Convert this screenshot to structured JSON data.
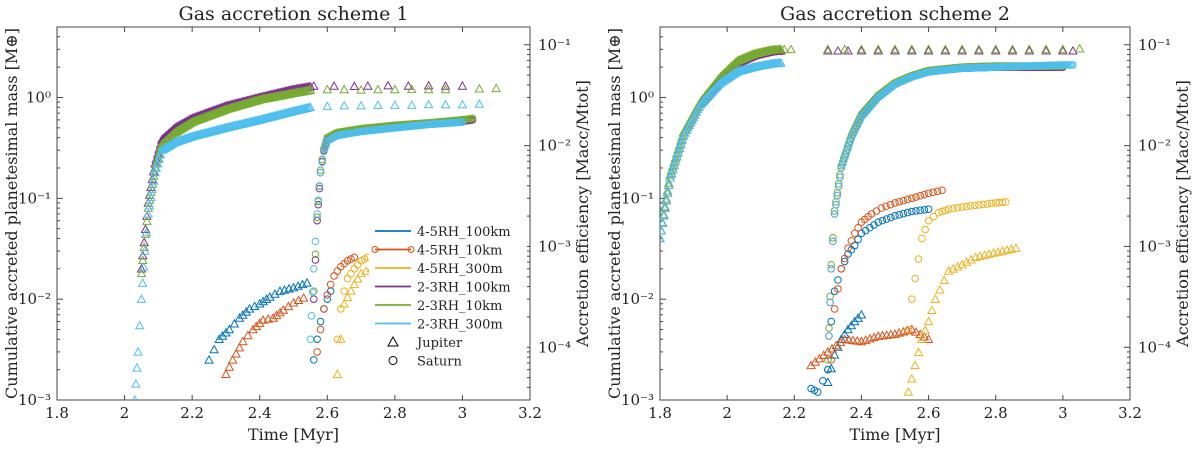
{
  "chart_data": [
    {
      "type": "scatter",
      "title": "Gas accretion scheme 1",
      "xlabel": "Time [Myr]",
      "ylabel_left": "Cumulative accreted planetesimal mass [M⊕]",
      "ylabel_right": "Accretion efficiency [Macc/Mtot]",
      "xlim": [
        1.8,
        3.2
      ],
      "ylim_left": [
        0.001,
        5
      ],
      "ylim_right": [
        3e-05,
        0.15
      ],
      "yscale": "log",
      "xticks": [
        1.8,
        2.0,
        2.2,
        2.4,
        2.6,
        2.8,
        3.0,
        3.2
      ],
      "xtick_labels": [
        "1.8",
        "2",
        "2.2",
        "2.4",
        "2.6",
        "2.8",
        "3",
        "3.2"
      ],
      "yticks_left": [
        0.001,
        0.01,
        0.1,
        1
      ],
      "ytick_labels_left": [
        "10⁻³",
        "10⁻²",
        "10⁻¹",
        "10⁰"
      ],
      "yticks_right": [
        0.0001,
        0.001,
        0.01,
        0.1
      ],
      "ytick_labels_right": [
        "10⁻⁴",
        "10⁻³",
        "10⁻²",
        "10⁻¹"
      ],
      "legend": {
        "position": "bottom-right",
        "entries": [
          {
            "label": "4-5RH_100km",
            "color": "#0072BD",
            "marker": "line"
          },
          {
            "label": "4-5RH_10km",
            "color": "#D95319",
            "marker": "line-circle"
          },
          {
            "label": "4-5RH_300m",
            "color": "#EDB120",
            "marker": "line"
          },
          {
            "label": "2-3RH_100km",
            "color": "#7E2F8E",
            "marker": "line"
          },
          {
            "label": "2-3RH_10km",
            "color": "#77AC30",
            "marker": "line"
          },
          {
            "label": "2-3RH_300m",
            "color": "#4DBEEE",
            "marker": "line"
          },
          {
            "label": "Jupiter",
            "color": "#000000",
            "marker": "triangle"
          },
          {
            "label": "Saturn",
            "color": "#000000",
            "marker": "circle"
          }
        ]
      },
      "series": [
        {
          "name": "2-3RH_100km Jupiter",
          "color": "#7E2F8E",
          "marker": "triangle",
          "x": [
            2.05,
            2.07,
            2.09,
            2.11,
            2.15,
            2.2,
            2.3,
            2.4,
            2.5,
            2.55
          ],
          "y": [
            0.02,
            0.09,
            0.22,
            0.38,
            0.5,
            0.62,
            0.82,
            1.0,
            1.2,
            1.28
          ],
          "tail_x": [
            2.56,
            2.62,
            2.68,
            2.72,
            2.78,
            2.84,
            2.9,
            2.95,
            3.0
          ],
          "tail_y": [
            1.3,
            1.3,
            1.29,
            1.3,
            1.31,
            1.3,
            1.31,
            1.3,
            1.3
          ]
        },
        {
          "name": "2-3RH_10km Jupiter",
          "color": "#77AC30",
          "marker": "triangle",
          "x": [
            2.05,
            2.07,
            2.09,
            2.11,
            2.15,
            2.2,
            2.3,
            2.4,
            2.5,
            2.55
          ],
          "y": [
            0.018,
            0.08,
            0.2,
            0.34,
            0.45,
            0.57,
            0.76,
            0.95,
            1.1,
            1.18
          ],
          "tail_x": [
            2.6,
            2.65,
            2.7,
            2.75,
            2.8,
            2.85,
            2.9,
            2.95,
            3.05,
            3.1
          ],
          "tail_y": [
            1.2,
            1.2,
            1.19,
            1.2,
            1.2,
            1.21,
            1.2,
            1.2,
            1.22,
            1.23
          ]
        },
        {
          "name": "2-3RH_300m Jupiter",
          "color": "#4DBEEE",
          "marker": "triangle",
          "x": [
            2.03,
            2.04,
            2.05,
            2.06,
            2.07,
            2.09,
            2.11,
            2.15,
            2.2,
            2.3,
            2.4,
            2.5,
            2.55
          ],
          "y": [
            0.001,
            0.003,
            0.01,
            0.03,
            0.07,
            0.18,
            0.3,
            0.36,
            0.41,
            0.5,
            0.6,
            0.73,
            0.8
          ],
          "tail_x": [
            2.6,
            2.65,
            2.7,
            2.75,
            2.8,
            2.85,
            2.9,
            2.95,
            3.0,
            3.05
          ],
          "tail_y": [
            0.82,
            0.83,
            0.83,
            0.84,
            0.84,
            0.84,
            0.85,
            0.85,
            0.85,
            0.86
          ]
        },
        {
          "name": "2-3RH_100km Saturn",
          "color": "#7E2F8E",
          "marker": "circle",
          "x": [
            2.56,
            2.57,
            2.58,
            2.59,
            2.6,
            2.63,
            2.7,
            2.8,
            2.9,
            3.0,
            3.03
          ],
          "y": [
            0.01,
            0.06,
            0.18,
            0.3,
            0.38,
            0.43,
            0.47,
            0.51,
            0.55,
            0.58,
            0.6
          ]
        },
        {
          "name": "2-3RH_10km Saturn",
          "color": "#77AC30",
          "marker": "circle",
          "x": [
            2.56,
            2.57,
            2.58,
            2.59,
            2.6,
            2.63,
            2.7,
            2.8,
            2.9,
            3.0,
            3.03
          ],
          "y": [
            0.012,
            0.065,
            0.19,
            0.31,
            0.4,
            0.45,
            0.49,
            0.53,
            0.56,
            0.6,
            0.62
          ]
        },
        {
          "name": "2-3RH_300m Saturn",
          "color": "#4DBEEE",
          "marker": "circle",
          "x": [
            2.55,
            2.56,
            2.57,
            2.58,
            2.59,
            2.6,
            2.63,
            2.7,
            2.8,
            2.9,
            3.0
          ],
          "y": [
            0.004,
            0.02,
            0.07,
            0.18,
            0.29,
            0.37,
            0.42,
            0.46,
            0.5,
            0.54,
            0.57
          ]
        },
        {
          "name": "4-5RH_100km Jupiter",
          "color": "#0072BD",
          "marker": "triangle",
          "x": [
            2.25,
            2.28,
            2.31,
            2.34,
            2.37,
            2.4,
            2.43,
            2.46,
            2.5,
            2.54
          ],
          "y": [
            0.0025,
            0.004,
            0.005,
            0.0065,
            0.008,
            0.009,
            0.0105,
            0.012,
            0.013,
            0.0145
          ]
        },
        {
          "name": "4-5RH_10km Jupiter",
          "color": "#D95319",
          "marker": "triangle",
          "x": [
            2.3,
            2.32,
            2.35,
            2.38,
            2.41,
            2.44,
            2.47,
            2.5,
            2.53
          ],
          "y": [
            0.0018,
            0.0025,
            0.0038,
            0.005,
            0.0062,
            0.0065,
            0.0078,
            0.0092,
            0.0103
          ]
        },
        {
          "name": "4-5RH_300m Jupiter",
          "color": "#EDB120",
          "marker": "triangle",
          "x": [
            2.63,
            2.65,
            2.68,
            2.7,
            2.73,
            2.76,
            2.79,
            2.82,
            2.85
          ],
          "y": [
            0.0018,
            0.009,
            0.014,
            0.018,
            0.02,
            0.022,
            0.024,
            0.026,
            0.027
          ]
        },
        {
          "name": "4-5RH_100km Saturn",
          "color": "#0072BD",
          "marker": "circle",
          "x": [
            2.56,
            2.57,
            2.58,
            2.59,
            2.6,
            2.61
          ],
          "y": [
            0.0025,
            0.004,
            0.006,
            0.008,
            0.01,
            0.012
          ]
        },
        {
          "name": "4-5RH_10km Saturn",
          "color": "#D95319",
          "marker": "circle",
          "x": [
            2.57,
            2.58,
            2.59,
            2.6,
            2.61,
            2.62,
            2.63,
            2.64,
            2.66,
            2.68
          ],
          "y": [
            0.003,
            0.005,
            0.008,
            0.011,
            0.014,
            0.017,
            0.019,
            0.021,
            0.024,
            0.026
          ]
        },
        {
          "name": "4-5RH_300m Saturn",
          "color": "#EDB120",
          "marker": "circle",
          "x": [
            2.63,
            2.64,
            2.65,
            2.66,
            2.68,
            2.7,
            2.72
          ],
          "y": [
            0.004,
            0.008,
            0.012,
            0.016,
            0.02,
            0.024,
            0.026
          ]
        }
      ]
    },
    {
      "type": "scatter",
      "title": "Gas accretion scheme 2",
      "xlabel": "Time [Myr]",
      "ylabel_left": "Cumulative accreted planetesimal mass [M⊕]",
      "ylabel_right": "Accretion efficiency [Macc/Mtot]",
      "xlim": [
        1.8,
        3.2
      ],
      "ylim_left": [
        0.001,
        5
      ],
      "ylim_right": [
        3e-05,
        0.15
      ],
      "yscale": "log",
      "xticks": [
        1.8,
        2.0,
        2.2,
        2.4,
        2.6,
        2.8,
        3.0,
        3.2
      ],
      "xtick_labels": [
        "1.8",
        "2",
        "2.2",
        "2.4",
        "2.6",
        "2.8",
        "3",
        "3.2"
      ],
      "yticks_left": [
        0.001,
        0.01,
        0.1,
        1
      ],
      "ytick_labels_left": [
        "10⁻³",
        "10⁻²",
        "10⁻¹",
        "10⁰"
      ],
      "yticks_right": [
        0.0001,
        0.001,
        0.01,
        0.1
      ],
      "ytick_labels_right": [
        "10⁻⁴",
        "10⁻³",
        "10⁻²",
        "10⁻¹"
      ],
      "series": [
        {
          "name": "2-3RH_100km Jupiter",
          "color": "#7E2F8E",
          "marker": "triangle",
          "x": [
            1.8,
            1.83,
            1.87,
            1.92,
            1.98,
            2.03,
            2.08,
            2.13,
            2.16
          ],
          "y": [
            0.04,
            0.16,
            0.42,
            0.85,
            1.5,
            2.2,
            2.6,
            2.85,
            2.9
          ],
          "tail_x": [
            2.3,
            2.33,
            2.36,
            2.4,
            2.45,
            2.5,
            2.55,
            2.6,
            2.65,
            2.7,
            2.75,
            2.8,
            2.85,
            2.9,
            2.95,
            3.0,
            3.03
          ],
          "tail_y": [
            2.9,
            2.9,
            2.9,
            2.9,
            2.9,
            2.9,
            2.9,
            2.9,
            2.9,
            2.9,
            2.9,
            2.9,
            2.9,
            2.9,
            2.9,
            2.9,
            2.9
          ]
        },
        {
          "name": "2-3RH_10km Jupiter",
          "color": "#77AC30",
          "marker": "triangle",
          "x": [
            1.8,
            1.83,
            1.87,
            1.92,
            1.98,
            2.03,
            2.08,
            2.13,
            2.16
          ],
          "y": [
            0.04,
            0.17,
            0.45,
            0.9,
            1.6,
            2.3,
            2.7,
            2.95,
            3.0
          ],
          "tail_x": [
            2.17,
            2.19,
            2.3,
            2.35,
            2.4,
            2.45,
            2.5,
            2.55,
            2.6,
            2.65,
            2.7,
            2.75,
            2.8,
            2.85,
            2.9,
            2.95,
            3.0,
            3.05
          ],
          "tail_y": [
            3.0,
            3.0,
            3.0,
            3.0,
            3.0,
            3.0,
            3.0,
            3.0,
            3.0,
            3.0,
            3.0,
            3.0,
            3.0,
            3.0,
            3.0,
            3.0,
            3.0,
            3.05
          ]
        },
        {
          "name": "2-3RH_300m Jupiter",
          "color": "#4DBEEE",
          "marker": "triangle",
          "x": [
            1.8,
            1.83,
            1.87,
            1.92,
            1.98,
            2.03,
            2.08,
            2.13,
            2.16
          ],
          "y": [
            0.04,
            0.16,
            0.42,
            0.85,
            1.4,
            1.8,
            2.0,
            2.15,
            2.2
          ],
          "tail_x": [],
          "tail_y": []
        },
        {
          "name": "2-3RH_100km Saturn",
          "color": "#7E2F8E",
          "marker": "circle",
          "x": [
            2.3,
            2.31,
            2.32,
            2.34,
            2.37,
            2.4,
            2.45,
            2.5,
            2.55,
            2.6,
            2.7,
            2.8,
            2.9,
            3.0
          ],
          "y": [
            0.002,
            0.02,
            0.07,
            0.2,
            0.4,
            0.65,
            1.0,
            1.35,
            1.6,
            1.8,
            1.95,
            2.0,
            2.0,
            2.0
          ]
        },
        {
          "name": "2-3RH_10km Saturn",
          "color": "#77AC30",
          "marker": "circle",
          "x": [
            2.3,
            2.31,
            2.32,
            2.34,
            2.37,
            2.4,
            2.45,
            2.5,
            2.55,
            2.6,
            2.7,
            2.8,
            2.9,
            3.0
          ],
          "y": [
            0.0025,
            0.022,
            0.075,
            0.21,
            0.42,
            0.68,
            1.05,
            1.4,
            1.65,
            1.85,
            2.0,
            2.05,
            2.05,
            2.05
          ]
        },
        {
          "name": "2-3RH_300m Saturn",
          "color": "#4DBEEE",
          "marker": "circle",
          "x": [
            2.3,
            2.31,
            2.32,
            2.34,
            2.37,
            2.4,
            2.45,
            2.5,
            2.55,
            2.6,
            2.7,
            2.8,
            2.9,
            3.0,
            3.03
          ],
          "y": [
            0.002,
            0.02,
            0.07,
            0.2,
            0.4,
            0.64,
            1.0,
            1.35,
            1.6,
            1.8,
            1.95,
            2.0,
            2.05,
            2.1,
            2.1
          ]
        },
        {
          "name": "4-5RH_100km Jupiter",
          "color": "#0072BD",
          "marker": "triangle",
          "x": [
            2.3,
            2.32,
            2.34,
            2.36,
            2.38,
            2.4
          ],
          "y": [
            0.0015,
            0.0028,
            0.004,
            0.005,
            0.006,
            0.007
          ]
        },
        {
          "name": "4-5RH_10km Jupiter",
          "color": "#D95319",
          "marker": "triangle",
          "x": [
            2.25,
            2.3,
            2.35,
            2.4,
            2.45,
            2.5,
            2.55,
            2.6
          ],
          "y": [
            0.0022,
            0.003,
            0.004,
            0.0038,
            0.0043,
            0.0045,
            0.005,
            0.004
          ]
        },
        {
          "name": "4-5RH_300m Jupiter",
          "color": "#EDB120",
          "marker": "triangle",
          "x": [
            2.54,
            2.56,
            2.58,
            2.6,
            2.62,
            2.66,
            2.7,
            2.74,
            2.78,
            2.82,
            2.86
          ],
          "y": [
            0.0012,
            0.0022,
            0.004,
            0.006,
            0.01,
            0.019,
            0.022,
            0.026,
            0.028,
            0.03,
            0.032
          ]
        },
        {
          "name": "4-5RH_100km Saturn",
          "color": "#0072BD",
          "marker": "circle",
          "x": [
            2.25,
            2.27,
            2.3,
            2.31,
            2.32,
            2.34,
            2.36,
            2.38,
            2.4,
            2.45,
            2.5,
            2.55,
            2.6
          ],
          "y": [
            0.0013,
            0.0012,
            0.002,
            0.006,
            0.012,
            0.02,
            0.028,
            0.034,
            0.045,
            0.058,
            0.067,
            0.074,
            0.078
          ]
        },
        {
          "name": "4-5RH_10km Saturn",
          "color": "#D95319",
          "marker": "circle",
          "x": [
            2.31,
            2.32,
            2.34,
            2.36,
            2.38,
            2.4,
            2.43,
            2.46,
            2.5,
            2.55,
            2.6,
            2.64
          ],
          "y": [
            0.0025,
            0.008,
            0.02,
            0.032,
            0.045,
            0.058,
            0.07,
            0.08,
            0.09,
            0.1,
            0.112,
            0.12
          ]
        },
        {
          "name": "4-5RH_300m Saturn",
          "color": "#EDB120",
          "marker": "circle",
          "x": [
            2.54,
            2.55,
            2.56,
            2.57,
            2.58,
            2.6,
            2.63,
            2.66,
            2.7,
            2.75,
            2.8,
            2.83
          ],
          "y": [
            0.005,
            0.01,
            0.016,
            0.025,
            0.04,
            0.06,
            0.072,
            0.078,
            0.082,
            0.086,
            0.09,
            0.092
          ]
        }
      ]
    }
  ]
}
